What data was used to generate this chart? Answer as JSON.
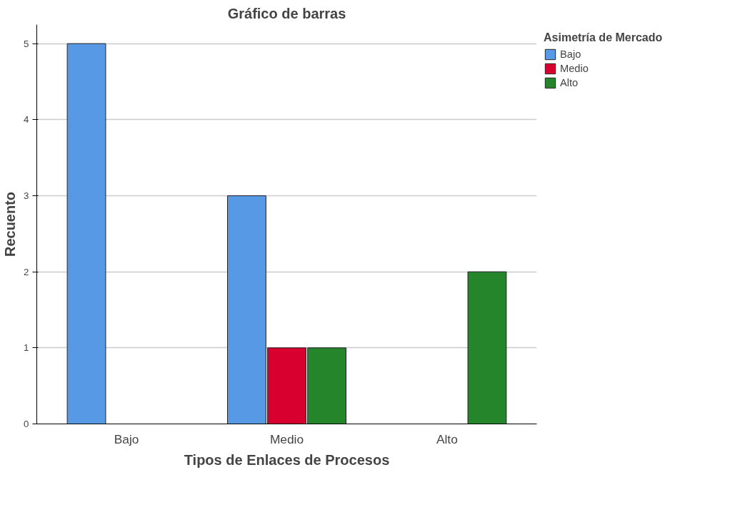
{
  "chart_data": {
    "type": "bar",
    "title": "Gráfico de barras",
    "xlabel": "Tipos de Enlaces de Procesos",
    "ylabel": "Recuento",
    "legend_title": "Asimetría de Mercado",
    "categories": [
      "Bajo",
      "Medio",
      "Alto"
    ],
    "series": [
      {
        "name": "Bajo",
        "color": "#5799e5",
        "values": [
          5,
          3,
          0
        ]
      },
      {
        "name": "Medio",
        "color": "#d8002f",
        "values": [
          0,
          1,
          0
        ]
      },
      {
        "name": "Alto",
        "color": "#24852a",
        "values": [
          0,
          1,
          2
        ]
      }
    ],
    "ylim": [
      0,
      5.25
    ],
    "yticks": [
      0,
      1,
      2,
      3,
      4,
      5
    ],
    "grid": "y",
    "legend": "top right"
  }
}
